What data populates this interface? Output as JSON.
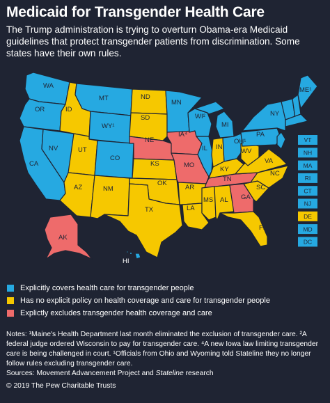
{
  "title": "Medicaid for Transgender Health Care",
  "subtitle": "The Trump administration is trying to overturn Obama-era Medicaid guidelines that protect transgender patients from discrimination. Some states have their own rules.",
  "colors": {
    "covers": "#26a9e1",
    "no_policy": "#f6c800",
    "excludes": "#ee6b6b",
    "background": "#1f2433"
  },
  "legend": [
    {
      "category": "covers",
      "label": "Explicitly covers health care for transgender people"
    },
    {
      "category": "no_policy",
      "label": "Has no explicit policy on health coverage and care for transgender people"
    },
    {
      "category": "excludes",
      "label": "Explictly excludes transgender health coverage and care"
    }
  ],
  "states": {
    "WA": "covers",
    "OR": "covers",
    "CA": "covers",
    "NV": "covers",
    "ID": "no_policy",
    "MT": "covers",
    "WY": "covers",
    "UT": "no_policy",
    "CO": "covers",
    "AZ": "no_policy",
    "NM": "no_policy",
    "ND": "no_policy",
    "SD": "no_policy",
    "NE": "excludes",
    "KS": "no_policy",
    "OK": "no_policy",
    "TX": "no_policy",
    "MN": "covers",
    "IA": "excludes",
    "MO": "excludes",
    "AR": "no_policy",
    "LA": "no_policy",
    "WI": "covers",
    "IL": "covers",
    "MI": "covers",
    "IN": "no_policy",
    "OH": "covers",
    "KY": "no_policy",
    "TN": "excludes",
    "MS": "no_policy",
    "AL": "no_policy",
    "GA": "excludes",
    "FL": "no_policy",
    "SC": "no_policy",
    "NC": "no_policy",
    "VA": "no_policy",
    "WV": "no_policy",
    "PA": "covers",
    "NY": "covers",
    "ME": "covers",
    "AK": "excludes",
    "HI": "covers",
    "VT": "covers",
    "NH": "covers",
    "MA": "covers",
    "RI": "covers",
    "CT": "covers",
    "NJ": "covers",
    "DE": "no_policy",
    "MD": "covers",
    "DC": "covers"
  },
  "map_labels": {
    "WA": "WA",
    "OR": "OR",
    "CA": "CA",
    "NV": "NV",
    "ID": "ID",
    "MT": "MT",
    "WY": "WY¹",
    "UT": "UT",
    "CO": "CO",
    "AZ": "AZ",
    "NM": "NM",
    "ND": "ND",
    "SD": "SD",
    "NE": "NE",
    "KS": "KS",
    "OK": "OK",
    "TX": "TX",
    "MN": "MN",
    "IA": "IA⁴",
    "MO": "MO",
    "AR": "AR",
    "LA": "LA",
    "WI": "WI²",
    "IL": "IL",
    "MI": "MI",
    "IN": "IN",
    "OH": "OH¹",
    "KY": "KY",
    "TN": "TN",
    "MS": "MS",
    "AL": "AL",
    "GA": "GA",
    "FL": "FL",
    "SC": "SC",
    "NC": "NC",
    "VA": "VA",
    "WV": "WV",
    "PA": "PA",
    "NY": "NY",
    "ME": "ME¹",
    "AK": "AK",
    "HI": "HI"
  },
  "northeast_boxes": [
    "VT",
    "NH",
    "MA",
    "RI",
    "CT",
    "NJ",
    "DE",
    "MD",
    "DC"
  ],
  "notes": "Notes: ¹Maine's Health Department last month eliminated the exclusion of transgender care. ²A federal judge ordered Wisconsin to pay for transgender care. ⁴A new Iowa law limiting transgender care is being challenged in court. ¹Officials from Ohio and Wyoming told Stateline they no longer follow rules excluding transgender care.",
  "sources_prefix": "Sources: Movement Advancement Project and ",
  "sources_italic": "Stateline",
  "sources_suffix": " research",
  "copyright": "© 2019 The Pew Charitable Trusts"
}
